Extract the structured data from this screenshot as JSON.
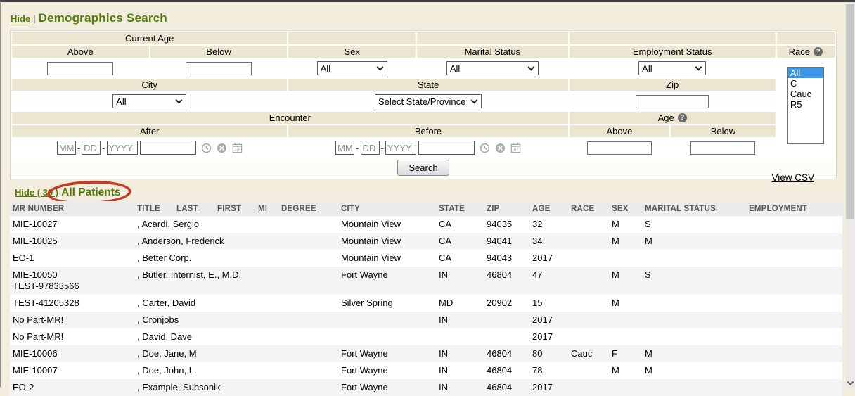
{
  "colors": {
    "accent_green": "#55790b",
    "annotation_red": "#c43b27",
    "race_selected_blue": "#3a97e8",
    "page_background": "#f2eddc",
    "form_cell_tan": "#ece6d1"
  },
  "demographics": {
    "hide_link": "Hide",
    "divider": "|",
    "title": "Demographics Search",
    "current_age_label": "Current Age",
    "above_label": "Above",
    "below_label": "Below",
    "sex_label": "Sex",
    "sex_value": "All",
    "marital_label": "Marital Status",
    "marital_value": "All",
    "employment_label": "Employment Status",
    "employment_value": "All",
    "race_label": "Race",
    "race_help": "?",
    "race_options": [
      "All",
      "C",
      "Cauc",
      "R5"
    ],
    "race_selected": "All",
    "city_label": "City",
    "city_value": "All",
    "state_label": "State",
    "state_value": "Select State/Province",
    "zip_label": "Zip",
    "encounter_label": "Encounter",
    "after_label": "After",
    "before_label": "Before",
    "age_label": "Age",
    "age_help": "?",
    "age_above_label": "Above",
    "age_below_label": "Below",
    "date_mm": "MM",
    "date_dd": "DD",
    "date_yyyy": "YYYY",
    "search_button": "Search"
  },
  "results": {
    "view_csv": "View CSV",
    "hide_link": "Hide ( 39 )",
    "title": "All Patients",
    "columns": [
      "MR NUMBER",
      "TITLE",
      "LAST",
      "FIRST",
      "MI",
      "DEGREE",
      "CITY",
      "STATE",
      "ZIP",
      "AGE",
      "RACE",
      "SEX",
      "MARITAL STATUS",
      "EMPLOYMENT"
    ],
    "rows": [
      {
        "mr": "MIE-10027",
        "mr2": "",
        "name": ", Acardi, Sergio",
        "city": "Mountain View",
        "state": "CA",
        "zip": "94035",
        "age": "32",
        "race": "",
        "sex": "M",
        "marital": "S",
        "employment": ""
      },
      {
        "mr": "MIE-10025",
        "mr2": "",
        "name": ", Anderson, Frederick",
        "city": "Mountain View",
        "state": "CA",
        "zip": "94041",
        "age": "34",
        "race": "",
        "sex": "M",
        "marital": "M",
        "employment": ""
      },
      {
        "mr": "EO-1",
        "mr2": "",
        "name": ", Better Corp.",
        "city": "Mountain View",
        "state": "CA",
        "zip": "94043",
        "age": "2017",
        "race": "",
        "sex": "",
        "marital": "",
        "employment": ""
      },
      {
        "mr": "MIE-10050",
        "mr2": "TEST-97833566",
        "name": ", Butler, Internist, E., M.D.",
        "city": "Fort Wayne",
        "state": "IN",
        "zip": "46804",
        "age": "47",
        "race": "",
        "sex": "M",
        "marital": "S",
        "employment": ""
      },
      {
        "mr": "TEST-41205328",
        "mr2": "",
        "name": ", Carter, David",
        "city": "Silver Spring",
        "state": "MD",
        "zip": "20902",
        "age": "15",
        "race": "",
        "sex": "M",
        "marital": "",
        "employment": ""
      },
      {
        "mr": "No Part-MR!",
        "mr2": "",
        "name": ", Cronjobs",
        "city": "",
        "state": "IN",
        "zip": "",
        "age": "2017",
        "race": "",
        "sex": "",
        "marital": "",
        "employment": ""
      },
      {
        "mr": "No Part-MR!",
        "mr2": "",
        "name": ", David, Dave",
        "city": "",
        "state": "",
        "zip": "",
        "age": "2017",
        "race": "",
        "sex": "",
        "marital": "",
        "employment": ""
      },
      {
        "mr": "MIE-10006",
        "mr2": "",
        "name": ", Doe, Jane, M",
        "city": "Fort Wayne",
        "state": "IN",
        "zip": "46804",
        "age": "80",
        "race": "Cauc",
        "sex": "F",
        "marital": "M",
        "employment": ""
      },
      {
        "mr": "MIE-10007",
        "mr2": "",
        "name": ", Doe, John, L.",
        "city": "Fort Wayne",
        "state": "IN",
        "zip": "46804",
        "age": "78",
        "race": "",
        "sex": "M",
        "marital": "M",
        "employment": ""
      },
      {
        "mr": "EO-2",
        "mr2": "",
        "name": ", Example, Subsonik",
        "city": "Fort Wayne",
        "state": "IN",
        "zip": "46804",
        "age": "2017",
        "race": "",
        "sex": "",
        "marital": "",
        "employment": ""
      }
    ]
  }
}
